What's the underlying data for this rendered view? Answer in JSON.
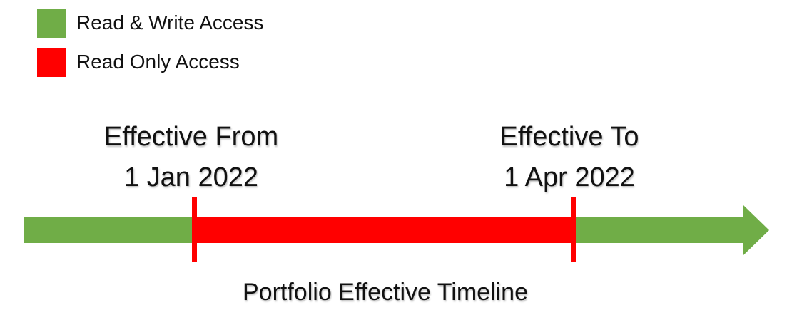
{
  "legend": {
    "items": [
      {
        "label": "Read & Write Access",
        "color": "#70ad47"
      },
      {
        "label": "Read Only Access",
        "color": "#ff0000"
      }
    ]
  },
  "markers": {
    "from": {
      "line1": "Effective From",
      "line2": "1 Jan 2022",
      "color": "#ff0000"
    },
    "to": {
      "line1": "Effective To",
      "line2": "1 Apr 2022",
      "color": "#ff0000"
    }
  },
  "timeline": {
    "segments": [
      "read-write",
      "read-only",
      "read-write"
    ],
    "arrow_direction": "right"
  },
  "caption": "Portfolio Effective Timeline"
}
